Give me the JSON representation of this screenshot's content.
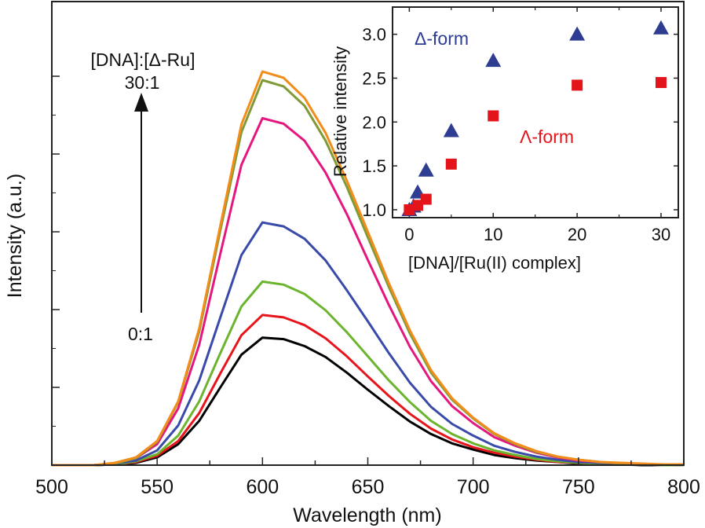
{
  "chart_data": [
    {
      "type": "line",
      "xlabel": "Wavelength (nm)",
      "ylabel": "Intensity (a.u.)",
      "xlim": [
        500,
        800
      ],
      "ylim": [
        0,
        5.96
      ],
      "xticks": [
        500,
        550,
        600,
        650,
        700,
        750,
        800
      ],
      "yticks_labeled": false,
      "grid": false,
      "annotations": {
        "title": "[DNA]:[Δ-Ru]",
        "top": "30:1",
        "bottom": "0:1"
      },
      "x": [
        500,
        510,
        520,
        530,
        540,
        550,
        560,
        570,
        580,
        590,
        600,
        610,
        620,
        630,
        640,
        650,
        660,
        670,
        680,
        690,
        700,
        710,
        720,
        730,
        740,
        750,
        760,
        770,
        780,
        790,
        800
      ],
      "series": [
        {
          "color": "#000000",
          "values": [
            0,
            0,
            0,
            0.01,
            0.03,
            0.1,
            0.27,
            0.57,
            1.0,
            1.42,
            1.64,
            1.62,
            1.53,
            1.39,
            1.19,
            0.97,
            0.76,
            0.56,
            0.4,
            0.28,
            0.2,
            0.13,
            0.09,
            0.06,
            0.04,
            0.02,
            0.01,
            0.01,
            0,
            0,
            0
          ]
        },
        {
          "color": "#e8141c",
          "values": [
            0,
            0,
            0,
            0.01,
            0.04,
            0.12,
            0.31,
            0.67,
            1.18,
            1.67,
            1.93,
            1.9,
            1.8,
            1.63,
            1.4,
            1.14,
            0.89,
            0.66,
            0.47,
            0.33,
            0.23,
            0.16,
            0.11,
            0.07,
            0.04,
            0.03,
            0.02,
            0.01,
            0.01,
            0,
            0
          ]
        },
        {
          "color": "#6bb52e",
          "values": [
            0,
            0,
            0,
            0.01,
            0.05,
            0.14,
            0.38,
            0.82,
            1.44,
            2.04,
            2.36,
            2.32,
            2.2,
            1.99,
            1.71,
            1.4,
            1.09,
            0.81,
            0.57,
            0.4,
            0.28,
            0.19,
            0.13,
            0.08,
            0.05,
            0.03,
            0.02,
            0.01,
            0.01,
            0,
            0
          ]
        },
        {
          "color": "#3a4aa8",
          "values": [
            0,
            0,
            0,
            0.02,
            0.06,
            0.19,
            0.51,
            1.09,
            1.9,
            2.7,
            3.12,
            3.07,
            2.91,
            2.63,
            2.25,
            1.85,
            1.44,
            1.06,
            0.75,
            0.53,
            0.38,
            0.25,
            0.17,
            0.11,
            0.07,
            0.04,
            0.03,
            0.02,
            0.01,
            0.01,
            0
          ]
        },
        {
          "color": "#e5177e",
          "values": [
            0,
            0,
            0,
            0.02,
            0.09,
            0.27,
            0.73,
            1.55,
            2.72,
            3.86,
            4.46,
            4.39,
            4.17,
            3.76,
            3.23,
            2.64,
            2.06,
            1.52,
            1.08,
            0.76,
            0.54,
            0.36,
            0.25,
            0.16,
            0.1,
            0.06,
            0.04,
            0.02,
            0.01,
            0.01,
            0
          ]
        },
        {
          "color": "#7f9a36",
          "values": [
            0,
            0,
            0,
            0.02,
            0.09,
            0.3,
            0.81,
            1.72,
            3.02,
            4.28,
            4.95,
            4.87,
            4.62,
            4.17,
            3.58,
            2.93,
            2.29,
            1.69,
            1.19,
            0.84,
            0.6,
            0.4,
            0.27,
            0.17,
            0.11,
            0.07,
            0.04,
            0.02,
            0.01,
            0.01,
            0
          ]
        },
        {
          "color": "#f28c1a",
          "values": [
            0,
            0,
            0,
            0.03,
            0.1,
            0.31,
            0.82,
            1.76,
            3.08,
            4.38,
            5.06,
            4.98,
            4.72,
            4.27,
            3.66,
            3.0,
            2.34,
            1.73,
            1.22,
            0.86,
            0.61,
            0.41,
            0.28,
            0.18,
            0.11,
            0.07,
            0.04,
            0.03,
            0.02,
            0.01,
            0.01
          ]
        }
      ]
    },
    {
      "type": "scatter",
      "xlabel": "[DNA]/[Ru(II) complex]",
      "ylabel": "Relative intensity",
      "xlim": [
        -2,
        32.06
      ],
      "ylim": [
        0.91,
        3.31
      ],
      "xticks": [
        0,
        10,
        20,
        30
      ],
      "yticks": [
        "1.0",
        "1.5",
        "2.0",
        "2.5",
        "3.0"
      ],
      "grid": false,
      "series": [
        {
          "name": "Δ-form",
          "marker": "triangle",
          "color": "#2e3c92",
          "x": [
            0,
            0.5,
            1,
            2,
            5,
            10,
            20,
            30
          ],
          "y": [
            1.0,
            1.04,
            1.2,
            1.45,
            1.9,
            2.7,
            3.0,
            3.07
          ]
        },
        {
          "name": "Λ-form",
          "marker": "square",
          "color": "#e3151b",
          "x": [
            0,
            1,
            2,
            5,
            10,
            20,
            30
          ],
          "y": [
            1.0,
            1.05,
            1.12,
            1.52,
            2.07,
            2.42,
            2.45
          ]
        }
      ]
    }
  ]
}
